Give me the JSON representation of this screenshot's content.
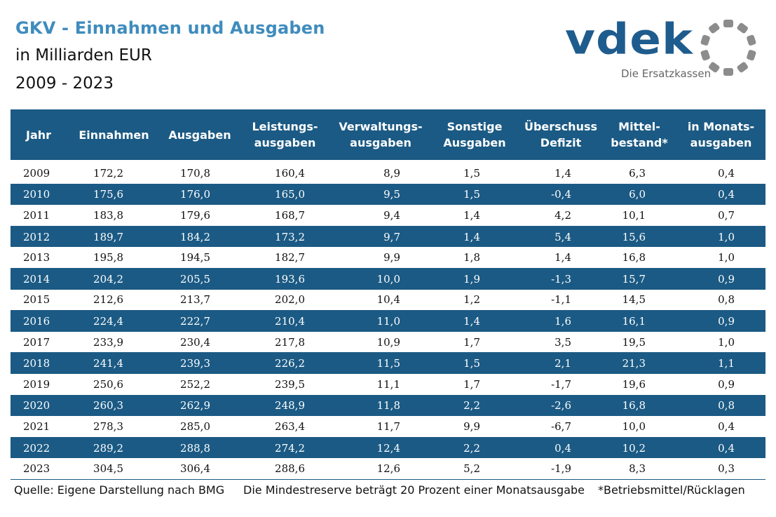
{
  "header": {
    "title": "GKV - Einnahmen und Ausgaben",
    "subtitle_unit": "in Milliarden EUR",
    "subtitle_period": "2009 - 2023"
  },
  "logo": {
    "wordmark": "vdek",
    "tagline": "Die Ersatzkassen",
    "color": "#1f5c8e",
    "ring_color": "#8c8c8c"
  },
  "table": {
    "header_color": "#1b5a84",
    "columns": [
      {
        "line1": "Jahr",
        "line2": ""
      },
      {
        "line1": "Einnahmen",
        "line2": ""
      },
      {
        "line1": "Ausgaben",
        "line2": ""
      },
      {
        "line1": "Leistungs-",
        "line2": "ausgaben"
      },
      {
        "line1": "Verwaltungs-",
        "line2": "ausgaben"
      },
      {
        "line1": "Sonstige",
        "line2": "Ausgaben"
      },
      {
        "line1": "Überschuss",
        "line2": "Defizit"
      },
      {
        "line1": "Mittel-",
        "line2": "bestand*"
      },
      {
        "line1": "in Monats-",
        "line2": "ausgaben"
      }
    ],
    "rows": [
      [
        "2009",
        "172,2",
        "170,8",
        "160,4",
        "8,9",
        "1,5",
        "1,4",
        "6,3",
        "0,4"
      ],
      [
        "2010",
        "175,6",
        "176,0",
        "165,0",
        "9,5",
        "1,5",
        "-0,4",
        "6,0",
        "0,4"
      ],
      [
        "2011",
        "183,8",
        "179,6",
        "168,7",
        "9,4",
        "1,4",
        "4,2",
        "10,1",
        "0,7"
      ],
      [
        "2012",
        "189,7",
        "184,2",
        "173,2",
        "9,7",
        "1,4",
        "5,4",
        "15,6",
        "1,0"
      ],
      [
        "2013",
        "195,8",
        "194,5",
        "182,7",
        "9,9",
        "1,8",
        "1,4",
        "16,8",
        "1,0"
      ],
      [
        "2014",
        "204,2",
        "205,5",
        "193,6",
        "10,0",
        "1,9",
        "-1,3",
        "15,7",
        "0,9"
      ],
      [
        "2015",
        "212,6",
        "213,7",
        "202,0",
        "10,4",
        "1,2",
        "-1,1",
        "14,5",
        "0,8"
      ],
      [
        "2016",
        "224,4",
        "222,7",
        "210,4",
        "11,0",
        "1,4",
        "1,6",
        "16,1",
        "0,9"
      ],
      [
        "2017",
        "233,9",
        "230,4",
        "217,8",
        "10,9",
        "1,7",
        "3,5",
        "19,5",
        "1,0"
      ],
      [
        "2018",
        "241,4",
        "239,3",
        "226,2",
        "11,5",
        "1,5",
        "2,1",
        "21,3",
        "1,1"
      ],
      [
        "2019",
        "250,6",
        "252,2",
        "239,5",
        "11,1",
        "1,7",
        "-1,7",
        "19,6",
        "0,9"
      ],
      [
        "2020",
        "260,3",
        "262,9",
        "248,9",
        "11,8",
        "2,2",
        "-2,6",
        "16,8",
        "0,8"
      ],
      [
        "2021",
        "278,3",
        "285,0",
        "263,4",
        "11,7",
        "9,9",
        "-6,7",
        "10,0",
        "0,4"
      ],
      [
        "2022",
        "289,2",
        "288,8",
        "274,2",
        "12,4",
        "2,2",
        "0,4",
        "10,2",
        "0,4"
      ],
      [
        "2023",
        "304,5",
        "306,4",
        "288,6",
        "12,6",
        "5,2",
        "-1,9",
        "8,3",
        "0,3"
      ]
    ]
  },
  "footer": {
    "source": "Quelle: Eigene Darstellung nach BMG",
    "note": "Die Mindestreserve beträgt 20 Prozent einer Monatsausgabe",
    "footnote": "*Betriebsmittel/Rücklagen"
  }
}
